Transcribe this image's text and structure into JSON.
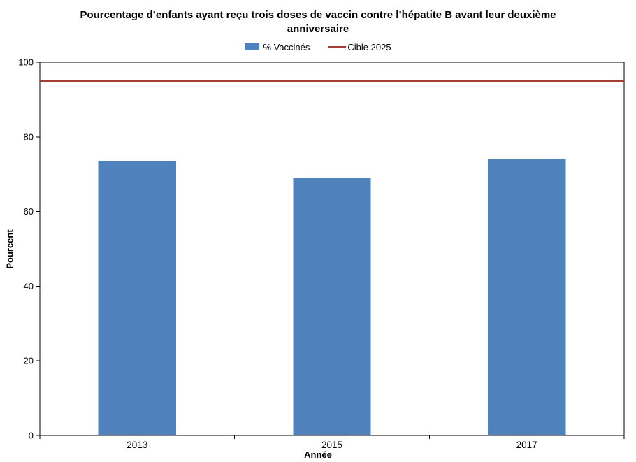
{
  "chart_data": {
    "type": "bar",
    "title": "Pourcentage d’enfants ayant reçu trois doses de vaccin contre l’hépatite B avant leur deuxième anniversaire",
    "categories": [
      "2013",
      "2015",
      "2017"
    ],
    "series": [
      {
        "name": "% Vaccinés",
        "type": "bar",
        "values": [
          73.5,
          69,
          74
        ],
        "color": "#4F81BD"
      },
      {
        "name": "Cible 2025",
        "type": "line",
        "values": [
          95,
          95,
          95
        ],
        "color": "#A33E38"
      }
    ],
    "xlabel": "Année",
    "ylabel": "Pourcent",
    "ylim": [
      0,
      100
    ],
    "ytick_step": 20,
    "yticks": [
      "0",
      "20",
      "40",
      "60",
      "80",
      "100"
    ],
    "legend_position": "top",
    "grid": false,
    "axis_color": "#000000",
    "background_color": "#FFFFFF"
  }
}
